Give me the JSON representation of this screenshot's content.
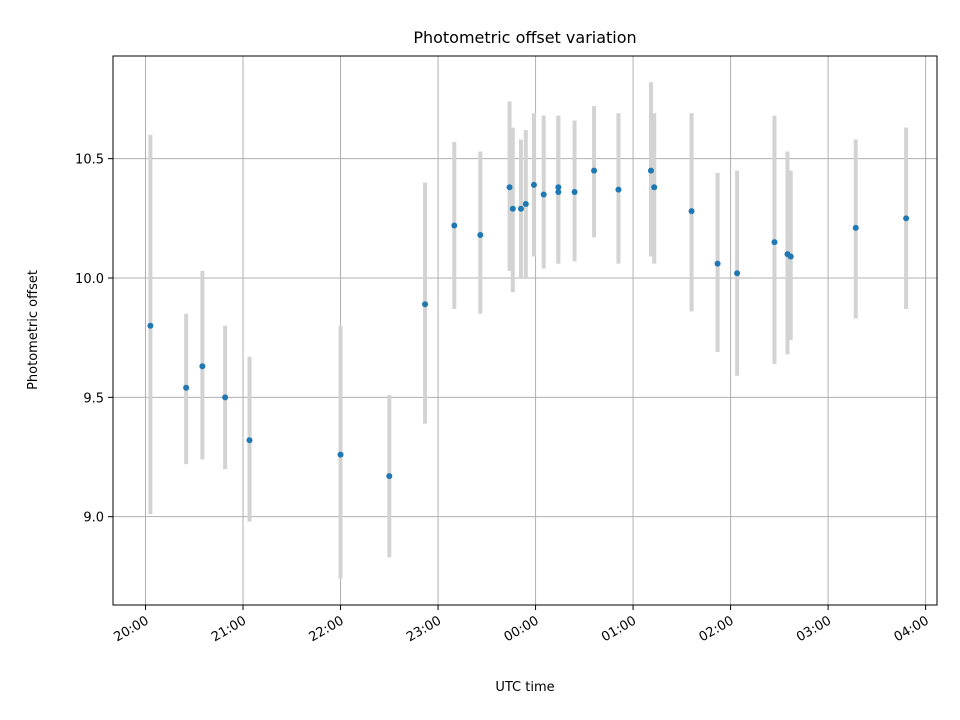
{
  "chart_data": {
    "type": "scatter",
    "title": "Photometric offset variation",
    "xlabel": "UTC time",
    "ylabel": "Photometric offset",
    "x_axis": {
      "kind": "time",
      "start": "20:00",
      "range": [
        "19:40",
        "04:07"
      ],
      "ticks": [
        "20:00",
        "21:00",
        "22:00",
        "23:00",
        "00:00",
        "01:00",
        "02:00",
        "03:00",
        "04:00"
      ]
    },
    "y_axis": {
      "range": [
        8.63,
        10.93
      ],
      "ticks": [
        9.0,
        9.5,
        10.0,
        10.5
      ],
      "tick_labels": [
        "9.0",
        "9.5",
        "10.0",
        "10.5"
      ]
    },
    "grid": true,
    "colors": {
      "point": "#1f77b4",
      "error_bar": "#d3d3d3",
      "grid": "#b0b0b0"
    },
    "series": [
      {
        "points": [
          {
            "x": "20:03",
            "y": 9.8,
            "low": 9.01,
            "high": 10.6
          },
          {
            "x": "20:25",
            "y": 9.54,
            "low": 9.22,
            "high": 9.85
          },
          {
            "x": "20:35",
            "y": 9.63,
            "low": 9.24,
            "high": 10.03
          },
          {
            "x": "20:49",
            "y": 9.5,
            "low": 9.2,
            "high": 9.8
          },
          {
            "x": "21:04",
            "y": 9.32,
            "low": 8.98,
            "high": 9.67
          },
          {
            "x": "22:00",
            "y": 9.26,
            "low": 8.74,
            "high": 9.8
          },
          {
            "x": "22:30",
            "y": 9.17,
            "low": 8.83,
            "high": 9.51
          },
          {
            "x": "22:52",
            "y": 9.89,
            "low": 9.39,
            "high": 10.4
          },
          {
            "x": "23:10",
            "y": 10.22,
            "low": 9.87,
            "high": 10.57
          },
          {
            "x": "23:26",
            "y": 10.18,
            "low": 9.85,
            "high": 10.53
          },
          {
            "x": "23:44",
            "y": 10.38,
            "low": 10.03,
            "high": 10.74
          },
          {
            "x": "23:46",
            "y": 10.29,
            "low": 9.94,
            "high": 10.63
          },
          {
            "x": "23:51",
            "y": 10.29,
            "low": 10.0,
            "high": 10.58
          },
          {
            "x": "23:54",
            "y": 10.31,
            "low": 10.0,
            "high": 10.62
          },
          {
            "x": "23:59",
            "y": 10.39,
            "low": 10.09,
            "high": 10.69
          },
          {
            "x": "00:05",
            "y": 10.35,
            "low": 10.04,
            "high": 10.68
          },
          {
            "x": "00:14",
            "y": 10.36,
            "low": 10.06,
            "high": 10.68
          },
          {
            "x": "00:14",
            "y": 10.38,
            "low": 10.06,
            "high": 10.68
          },
          {
            "x": "00:24",
            "y": 10.36,
            "low": 10.07,
            "high": 10.66
          },
          {
            "x": "00:36",
            "y": 10.45,
            "low": 10.17,
            "high": 10.72
          },
          {
            "x": "00:51",
            "y": 10.37,
            "low": 10.06,
            "high": 10.69
          },
          {
            "x": "01:11",
            "y": 10.45,
            "low": 10.09,
            "high": 10.82
          },
          {
            "x": "01:13",
            "y": 10.38,
            "low": 10.06,
            "high": 10.69
          },
          {
            "x": "01:36",
            "y": 10.28,
            "low": 9.86,
            "high": 10.69
          },
          {
            "x": "01:52",
            "y": 10.06,
            "low": 9.69,
            "high": 10.44
          },
          {
            "x": "02:04",
            "y": 10.02,
            "low": 9.59,
            "high": 10.45
          },
          {
            "x": "02:27",
            "y": 10.15,
            "low": 9.64,
            "high": 10.68
          },
          {
            "x": "02:35",
            "y": 10.1,
            "low": 9.68,
            "high": 10.53
          },
          {
            "x": "02:37",
            "y": 10.09,
            "low": 9.74,
            "high": 10.45
          },
          {
            "x": "03:17",
            "y": 10.21,
            "low": 9.83,
            "high": 10.58
          },
          {
            "x": "03:48",
            "y": 10.25,
            "low": 9.87,
            "high": 10.63
          }
        ]
      }
    ]
  }
}
